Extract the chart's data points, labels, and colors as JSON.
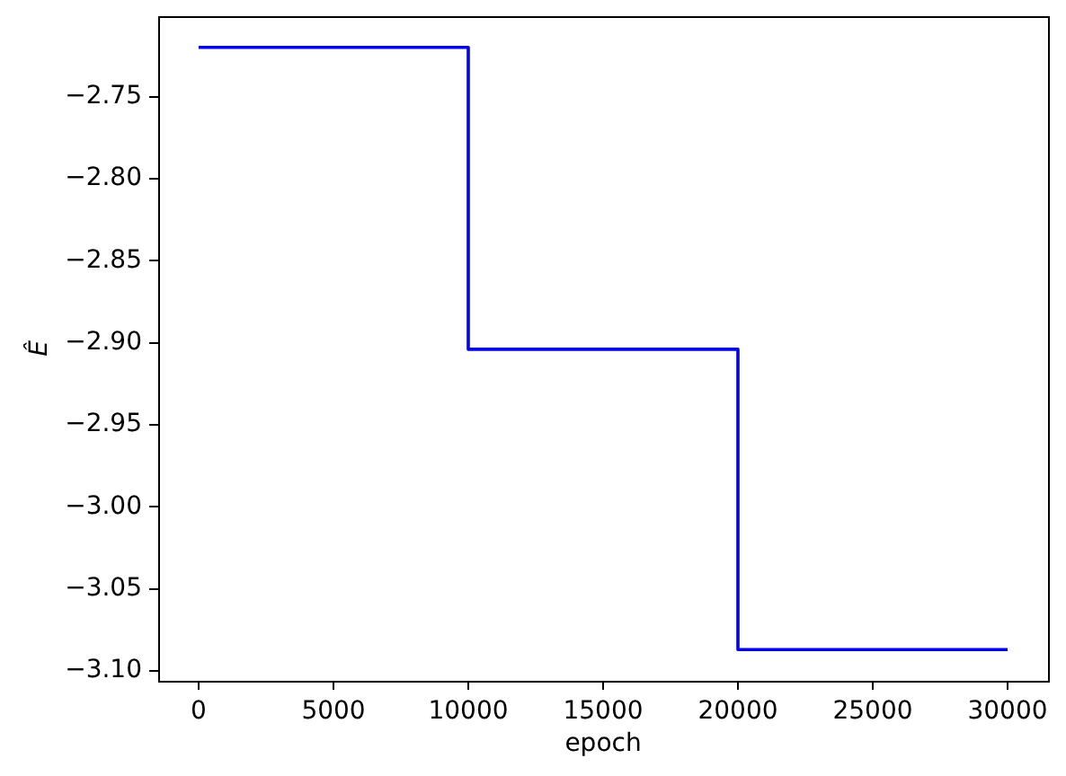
{
  "chart_data": {
    "type": "step",
    "xlabel": "epoch",
    "ylabel": "Ê",
    "x": [
      0,
      10000,
      20000,
      30000
    ],
    "values": [
      -2.72,
      -2.904,
      -3.087,
      -3.087
    ],
    "color": "#0000ff",
    "xlim": [
      -1500,
      31500
    ],
    "xticks": [
      0,
      5000,
      10000,
      15000,
      20000,
      25000,
      30000
    ],
    "ylim": [
      -3.106,
      -2.701
    ],
    "yticks": [
      {
        "value": -3.1,
        "label": "−3.10"
      },
      {
        "value": -3.05,
        "label": "−3.05"
      },
      {
        "value": -3,
        "label": "−3.00"
      },
      {
        "value": -2.95,
        "label": "−2.95"
      },
      {
        "value": -2.9,
        "label": "−2.90"
      },
      {
        "value": -2.85,
        "label": "−2.85"
      },
      {
        "value": -2.8,
        "label": "−2.80"
      },
      {
        "value": -2.75,
        "label": "−2.75"
      }
    ],
    "grid": false,
    "legend": false
  }
}
